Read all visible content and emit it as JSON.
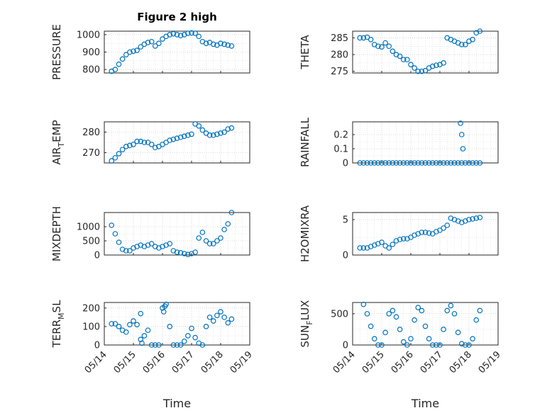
{
  "figure": {
    "title": "Figure 2 high",
    "marker_color": "#0072BD",
    "xlabel": "Time",
    "xtick_labels": [
      "05/14",
      "05/15",
      "05/16",
      "05/17",
      "05/18",
      "05/19"
    ]
  },
  "chart_data": [
    {
      "type": "scatter",
      "name": "pressure",
      "title": "Figure 2 high",
      "ylabel": "PRESSURE",
      "ylim": [
        780,
        1020
      ],
      "yticks": [
        800,
        900,
        1000
      ],
      "ytick_labels": [
        "800",
        "900",
        "1000"
      ],
      "xlim": [
        "2023-05-14",
        "2023-05-19"
      ],
      "grid": true,
      "x": [
        "05/14 06:00",
        "05/14 09:00",
        "05/14 12:00",
        "05/14 15:00",
        "05/14 18:00",
        "05/14 21:00",
        "05/15 00:00",
        "05/15 03:00",
        "05/15 06:00",
        "05/15 09:00",
        "05/15 12:00",
        "05/15 15:00",
        "05/15 18:00",
        "05/15 21:00",
        "05/16 00:00",
        "05/16 03:00",
        "05/16 06:00",
        "05/16 09:00",
        "05/16 12:00",
        "05/16 15:00",
        "05/16 18:00",
        "05/16 21:00",
        "05/17 00:00",
        "05/17 03:00",
        "05/17 06:00",
        "05/17 09:00",
        "05/17 12:00",
        "05/17 15:00",
        "05/17 18:00",
        "05/17 21:00",
        "05/18 00:00",
        "05/18 03:00",
        "05/18 06:00",
        "05/18 09:00"
      ],
      "values": [
        790,
        800,
        830,
        860,
        885,
        900,
        905,
        910,
        930,
        945,
        955,
        960,
        935,
        950,
        975,
        990,
        1000,
        1005,
        1000,
        995,
        1000,
        1008,
        1010,
        1008,
        990,
        960,
        950,
        955,
        945,
        940,
        950,
        945,
        940,
        935
      ]
    },
    {
      "type": "scatter",
      "name": "theta",
      "ylabel": "THETA",
      "ylim": [
        274.5,
        287
      ],
      "yticks": [
        275,
        280,
        285
      ],
      "ytick_labels": [
        "275",
        "280",
        "285"
      ],
      "xlim": [
        "2023-05-14",
        "2023-05-19"
      ],
      "grid": true,
      "x": [
        "05/14 06:00",
        "05/14 09:00",
        "05/14 12:00",
        "05/14 15:00",
        "05/14 18:00",
        "05/14 21:00",
        "05/15 00:00",
        "05/15 03:00",
        "05/15 06:00",
        "05/15 09:00",
        "05/15 12:00",
        "05/15 15:00",
        "05/15 18:00",
        "05/15 21:00",
        "05/16 00:00",
        "05/16 03:00",
        "05/16 06:00",
        "05/16 09:00",
        "05/16 12:00",
        "05/16 15:00",
        "05/16 18:00",
        "05/16 21:00",
        "05/17 00:00",
        "05/17 03:00",
        "05/17 06:00",
        "05/17 09:00",
        "05/17 12:00",
        "05/17 15:00",
        "05/17 18:00",
        "05/17 21:00",
        "05/18 00:00",
        "05/18 03:00",
        "05/18 06:00",
        "05/18 09:00"
      ],
      "values": [
        285,
        285,
        285.2,
        284.5,
        283,
        282.5,
        282.3,
        283.5,
        282.5,
        281,
        280,
        279.5,
        278.5,
        278.5,
        277,
        276,
        275,
        275,
        275.2,
        276,
        276.5,
        276.8,
        277,
        277.5,
        285,
        284.5,
        284,
        283.5,
        283,
        283,
        284,
        284.5,
        286.5,
        287
      ]
    },
    {
      "type": "scatter",
      "name": "air-temp",
      "ylabel": "AIR_TEMP",
      "ylim": [
        265,
        285
      ],
      "yticks": [
        270,
        280
      ],
      "ytick_labels": [
        "270",
        "280"
      ],
      "xlim": [
        "2023-05-14",
        "2023-05-19"
      ],
      "grid": true,
      "x": [
        "05/14 06:00",
        "05/14 09:00",
        "05/14 12:00",
        "05/14 15:00",
        "05/14 18:00",
        "05/14 21:00",
        "05/15 00:00",
        "05/15 03:00",
        "05/15 06:00",
        "05/15 09:00",
        "05/15 12:00",
        "05/15 15:00",
        "05/15 18:00",
        "05/15 21:00",
        "05/16 00:00",
        "05/16 03:00",
        "05/16 06:00",
        "05/16 09:00",
        "05/16 12:00",
        "05/16 15:00",
        "05/16 18:00",
        "05/16 21:00",
        "05/17 00:00",
        "05/17 03:00",
        "05/17 06:00",
        "05/17 09:00",
        "05/17 12:00",
        "05/17 15:00",
        "05/17 18:00",
        "05/17 21:00",
        "05/18 00:00",
        "05/18 03:00",
        "05/18 06:00",
        "05/18 09:00"
      ],
      "values": [
        266,
        267.5,
        269.5,
        271.5,
        273,
        273.5,
        274,
        275.5,
        275.5,
        275,
        275,
        274,
        272.5,
        273,
        274,
        275,
        276,
        276.5,
        277,
        277.5,
        278,
        278.5,
        279,
        284,
        283,
        281,
        279.5,
        278.5,
        278.5,
        279,
        279.5,
        280,
        281.5,
        282
      ]
    },
    {
      "type": "scatter",
      "name": "rainfall",
      "ylabel": "RAINFALL",
      "ylim": [
        0,
        0.29
      ],
      "yticks": [
        0,
        0.1,
        0.2
      ],
      "ytick_labels": [
        "0",
        "0.1",
        "0.2"
      ],
      "xlim": [
        "2023-05-14",
        "2023-05-19"
      ],
      "grid": true,
      "x": [
        "05/14 06:00",
        "05/14 09:00",
        "05/14 12:00",
        "05/14 15:00",
        "05/14 18:00",
        "05/14 21:00",
        "05/15 00:00",
        "05/15 03:00",
        "05/15 06:00",
        "05/15 09:00",
        "05/15 12:00",
        "05/15 15:00",
        "05/15 18:00",
        "05/15 21:00",
        "05/16 00:00",
        "05/16 03:00",
        "05/16 06:00",
        "05/16 09:00",
        "05/16 12:00",
        "05/16 15:00",
        "05/16 18:00",
        "05/16 21:00",
        "05/17 00:00",
        "05/17 03:00",
        "05/17 06:00",
        "05/17 09:00",
        "05/17 12:00",
        "05/17 15:00",
        "05/17 18:00",
        "05/17 21:00",
        "05/18 00:00",
        "05/18 03:00",
        "05/18 06:00",
        "05/18 09:00",
        "05/17 17:00",
        "05/17 18:00",
        "05/17 19:00"
      ],
      "values": [
        0,
        0,
        0,
        0,
        0,
        0,
        0,
        0,
        0,
        0,
        0,
        0,
        0,
        0,
        0,
        0,
        0,
        0,
        0,
        0,
        0,
        0,
        0,
        0,
        0,
        0,
        0,
        0,
        0,
        0,
        0,
        0,
        0,
        0,
        0.28,
        0.2,
        0.1
      ]
    },
    {
      "type": "scatter",
      "name": "mixdepth",
      "ylabel": "MIXDEPTH",
      "ylim": [
        0,
        1500
      ],
      "yticks": [
        0,
        500,
        1000
      ],
      "ytick_labels": [
        "0",
        "500",
        "1000"
      ],
      "xlim": [
        "2023-05-14",
        "2023-05-19"
      ],
      "grid": true,
      "x": [
        "05/14 06:00",
        "05/14 09:00",
        "05/14 12:00",
        "05/14 15:00",
        "05/14 18:00",
        "05/14 21:00",
        "05/15 00:00",
        "05/15 03:00",
        "05/15 06:00",
        "05/15 09:00",
        "05/15 12:00",
        "05/15 15:00",
        "05/15 18:00",
        "05/15 21:00",
        "05/16 00:00",
        "05/16 03:00",
        "05/16 06:00",
        "05/16 09:00",
        "05/16 12:00",
        "05/16 15:00",
        "05/16 18:00",
        "05/16 21:00",
        "05/17 00:00",
        "05/17 03:00",
        "05/17 06:00",
        "05/17 09:00",
        "05/17 12:00",
        "05/17 15:00",
        "05/17 18:00",
        "05/17 21:00",
        "05/18 00:00",
        "05/18 03:00",
        "05/18 06:00",
        "05/18 09:00"
      ],
      "values": [
        1050,
        750,
        450,
        200,
        150,
        150,
        250,
        300,
        350,
        300,
        350,
        400,
        300,
        250,
        300,
        350,
        400,
        150,
        100,
        80,
        50,
        20,
        50,
        100,
        600,
        800,
        500,
        400,
        400,
        500,
        600,
        900,
        1100,
        1500
      ]
    },
    {
      "type": "scatter",
      "name": "h2o-mixing-ratio",
      "ylabel": "H2OMIXRA",
      "ylim": [
        0,
        6
      ],
      "yticks": [
        0,
        5
      ],
      "ytick_labels": [
        "0",
        "5"
      ],
      "xlim": [
        "2023-05-14",
        "2023-05-19"
      ],
      "grid": true,
      "x": [
        "05/14 06:00",
        "05/14 09:00",
        "05/14 12:00",
        "05/14 15:00",
        "05/14 18:00",
        "05/14 21:00",
        "05/15 00:00",
        "05/15 03:00",
        "05/15 06:00",
        "05/15 09:00",
        "05/15 12:00",
        "05/15 15:00",
        "05/15 18:00",
        "05/15 21:00",
        "05/16 00:00",
        "05/16 03:00",
        "05/16 06:00",
        "05/16 09:00",
        "05/16 12:00",
        "05/16 15:00",
        "05/16 18:00",
        "05/16 21:00",
        "05/17 00:00",
        "05/17 03:00",
        "05/17 06:00",
        "05/17 09:00",
        "05/17 12:00",
        "05/17 15:00",
        "05/17 18:00",
        "05/17 21:00",
        "05/18 00:00",
        "05/18 03:00",
        "05/18 06:00",
        "05/18 09:00"
      ],
      "values": [
        1,
        1,
        1,
        1.2,
        1.4,
        1.6,
        1.8,
        1.3,
        1,
        1.5,
        2,
        2.2,
        2.3,
        2.3,
        2.5,
        2.8,
        3,
        3.2,
        3.2,
        3.1,
        3,
        3.3,
        3.5,
        3.8,
        4.2,
        5.2,
        5,
        4.8,
        4.6,
        4.8,
        5,
        5.1,
        5.2,
        5.3
      ]
    },
    {
      "type": "scatter",
      "name": "terr-msl",
      "ylabel": "TERR_MSL",
      "ylim": [
        0,
        230
      ],
      "yticks": [
        0,
        100,
        200
      ],
      "ytick_labels": [
        "0",
        "100",
        "200"
      ],
      "xlim": [
        "2023-05-14",
        "2023-05-19"
      ],
      "grid": true,
      "x": [
        "05/14 06:00",
        "05/14 09:00",
        "05/14 12:00",
        "05/14 15:00",
        "05/14 18:00",
        "05/14 21:00",
        "05/15 00:00",
        "05/15 03:00",
        "05/15 06:00",
        "05/15 09:00",
        "05/15 12:00",
        "05/15 15:00",
        "05/15 18:00",
        "05/15 21:00",
        "05/16 00:00",
        "05/16 03:00",
        "05/16 06:00",
        "05/16 09:00",
        "05/16 12:00",
        "05/16 15:00",
        "05/16 18:00",
        "05/16 21:00",
        "05/17 00:00",
        "05/17 03:00",
        "05/17 06:00",
        "05/17 09:00",
        "05/17 12:00",
        "05/17 15:00",
        "05/17 18:00",
        "05/17 21:00",
        "05/18 00:00",
        "05/18 03:00",
        "05/18 06:00",
        "05/18 09:00",
        "05/15 06:00",
        "05/15 07:00",
        "05/16 01:00",
        "05/16 02:00"
      ],
      "values": [
        115,
        115,
        100,
        80,
        70,
        110,
        130,
        110,
        30,
        50,
        80,
        0,
        0,
        0,
        200,
        220,
        100,
        0,
        0,
        0,
        20,
        50,
        90,
        40,
        10,
        0,
        100,
        150,
        130,
        160,
        180,
        150,
        120,
        140,
        170,
        10,
        180,
        210
      ]
    },
    {
      "type": "scatter",
      "name": "sun-flux",
      "ylabel": "SUN_FLUX",
      "ylim": [
        0,
        680
      ],
      "yticks": [
        0,
        500
      ],
      "ytick_labels": [
        "0",
        "500"
      ],
      "xlim": [
        "2023-05-14",
        "2023-05-19"
      ],
      "grid": true,
      "x": [
        "05/14 09:00",
        "05/14 12:00",
        "05/14 15:00",
        "05/14 18:00",
        "05/14 21:00",
        "05/15 00:00",
        "05/15 03:00",
        "05/15 06:00",
        "05/15 09:00",
        "05/15 12:00",
        "05/15 15:00",
        "05/15 18:00",
        "05/15 21:00",
        "05/16 00:00",
        "05/16 03:00",
        "05/16 06:00",
        "05/16 09:00",
        "05/16 12:00",
        "05/16 15:00",
        "05/16 18:00",
        "05/16 21:00",
        "05/17 00:00",
        "05/17 03:00",
        "05/17 06:00",
        "05/17 09:00",
        "05/17 12:00",
        "05/17 15:00",
        "05/17 18:00",
        "05/17 21:00",
        "05/18 00:00",
        "05/18 03:00",
        "05/18 06:00",
        "05/18 09:00"
      ],
      "values": [
        650,
        500,
        300,
        100,
        0,
        0,
        200,
        500,
        550,
        450,
        250,
        50,
        0,
        100,
        400,
        600,
        550,
        300,
        100,
        0,
        0,
        0,
        250,
        550,
        630,
        500,
        200,
        20,
        0,
        0,
        100,
        400,
        550
      ]
    }
  ]
}
